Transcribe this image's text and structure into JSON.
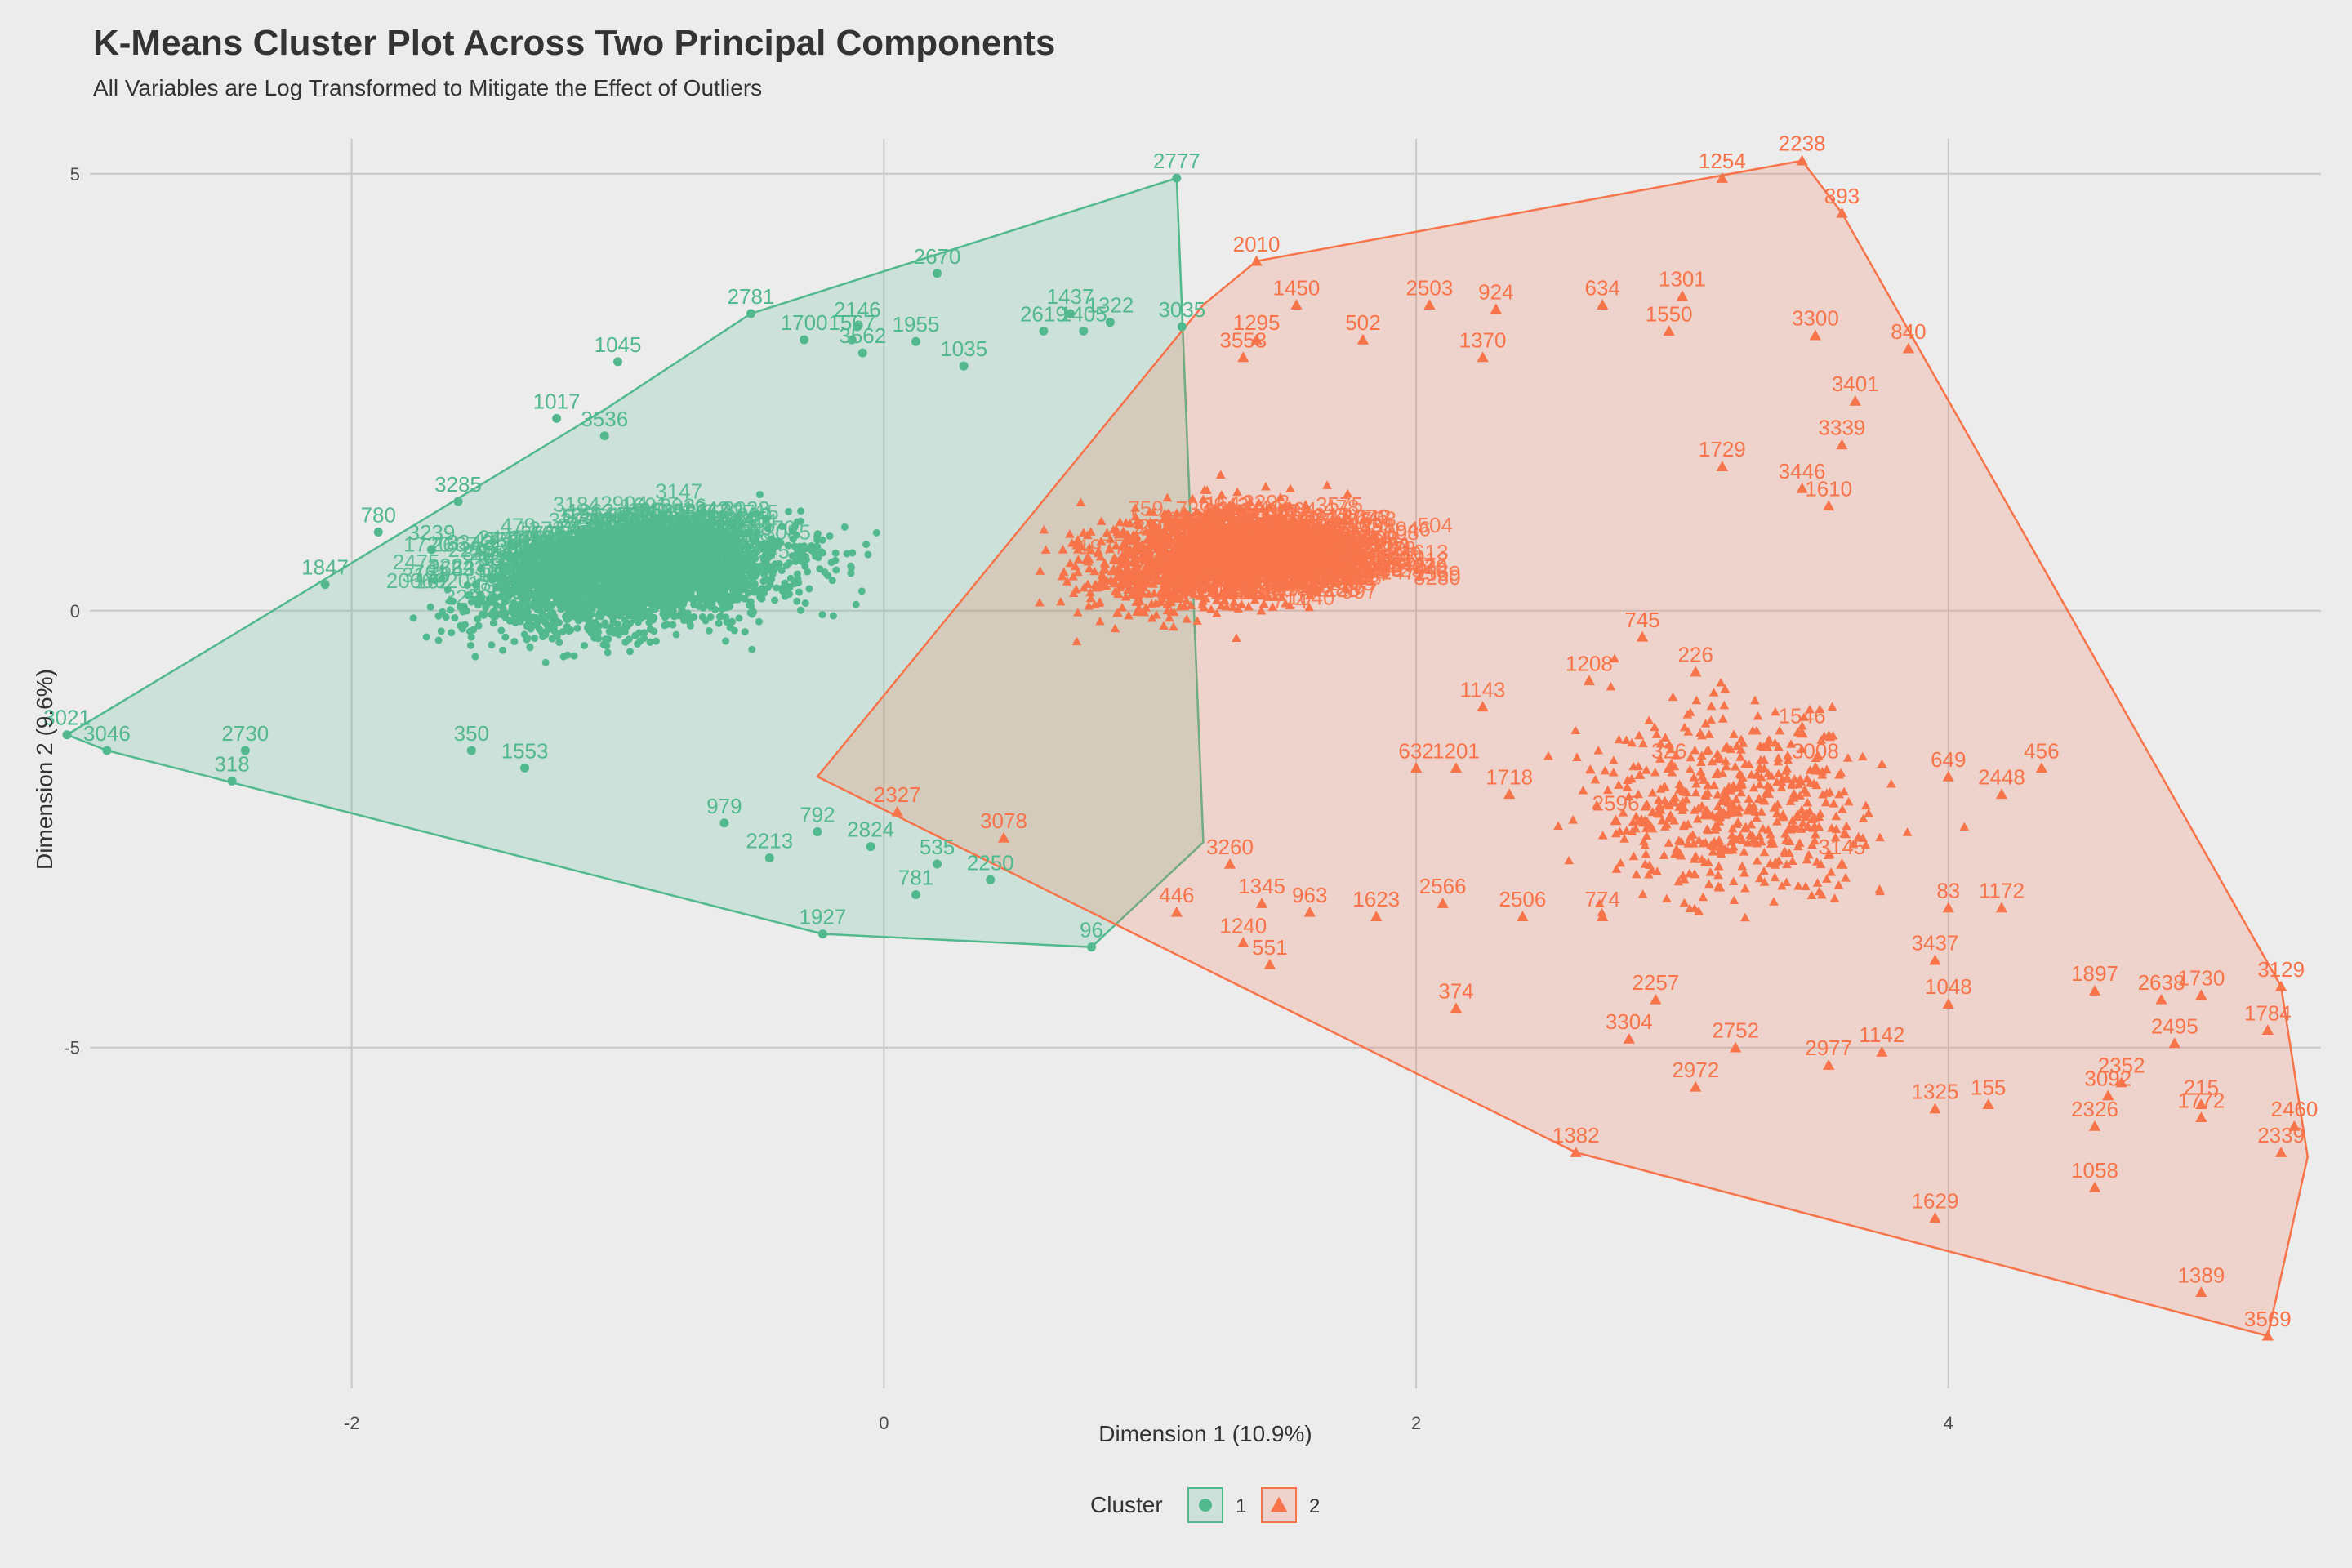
{
  "chart_data": {
    "type": "scatter",
    "title": "K-Means Cluster Plot Across Two Principal Components",
    "subtitle": "All Variables are Log Transformed to Mitigate the Effect of Outliers",
    "xlabel": "Dimension 1 (10.9%)",
    "ylabel": "Dimension 2 (9.6%)",
    "xlim": [
      -2.8,
      5.4
    ],
    "ylim": [
      -8.9,
      5.4
    ],
    "x_ticks": [
      -2,
      0,
      2,
      4
    ],
    "y_ticks": [
      -5,
      0,
      5
    ],
    "grid": true,
    "legend": {
      "title": "Cluster",
      "position": "bottom",
      "entries": [
        "1",
        "2"
      ]
    },
    "colors": {
      "cluster_1": "#52b98f",
      "cluster_2": "#f7744a",
      "background": "#ececec",
      "grid": "#c8c8c8",
      "text": "#333333"
    },
    "series": [
      {
        "name": "1",
        "marker": "circle",
        "hull": [
          [
            -3.07,
            -1.42
          ],
          [
            -2.92,
            -1.6
          ],
          [
            -0.23,
            -3.7
          ],
          [
            0.78,
            -3.85
          ],
          [
            1.2,
            -2.65
          ],
          [
            1.1,
            4.95
          ],
          [
            -0.5,
            3.4
          ],
          [
            -1.05,
            2.3
          ],
          [
            -2.35,
            -0.1
          ]
        ],
        "labeled_points": [
          {
            "label": "2777",
            "x": 1.1,
            "y": 4.95
          },
          {
            "label": "2670",
            "x": 0.2,
            "y": 3.86
          },
          {
            "label": "2781",
            "x": -0.5,
            "y": 3.4
          },
          {
            "label": "2146",
            "x": -0.1,
            "y": 3.25
          },
          {
            "label": "1700",
            "x": -0.3,
            "y": 3.1
          },
          {
            "label": "1567",
            "x": -0.12,
            "y": 3.1
          },
          {
            "label": "1955",
            "x": 0.12,
            "y": 3.08
          },
          {
            "label": "1035",
            "x": 0.3,
            "y": 2.8
          },
          {
            "label": "2619",
            "x": 0.6,
            "y": 3.2
          },
          {
            "label": "1437",
            "x": 0.7,
            "y": 3.4
          },
          {
            "label": "1322",
            "x": 0.85,
            "y": 3.3
          },
          {
            "label": "1405",
            "x": 0.75,
            "y": 3.2
          },
          {
            "label": "3035",
            "x": 1.12,
            "y": 3.25
          },
          {
            "label": "3562",
            "x": -0.08,
            "y": 2.95
          },
          {
            "label": "1045",
            "x": -1.0,
            "y": 2.85
          },
          {
            "label": "1017",
            "x": -1.23,
            "y": 2.2
          },
          {
            "label": "3536",
            "x": -1.05,
            "y": 2.0
          },
          {
            "label": "780",
            "x": -1.9,
            "y": 0.9
          },
          {
            "label": "3239",
            "x": -1.7,
            "y": 0.7
          },
          {
            "label": "3285",
            "x": -1.6,
            "y": 1.25
          },
          {
            "label": "1847",
            "x": -2.1,
            "y": 0.3
          },
          {
            "label": "3021",
            "x": -3.07,
            "y": -1.42
          },
          {
            "label": "3046",
            "x": -2.92,
            "y": -1.6
          },
          {
            "label": "2730",
            "x": -2.4,
            "y": -1.6
          },
          {
            "label": "318",
            "x": -2.45,
            "y": -1.95
          },
          {
            "label": "350",
            "x": -1.55,
            "y": -1.6
          },
          {
            "label": "1553",
            "x": -1.35,
            "y": -1.8
          },
          {
            "label": "979",
            "x": -0.6,
            "y": -2.43
          },
          {
            "label": "2213",
            "x": -0.43,
            "y": -2.83
          },
          {
            "label": "792",
            "x": -0.25,
            "y": -2.53
          },
          {
            "label": "2824",
            "x": -0.05,
            "y": -2.7
          },
          {
            "label": "535",
            "x": 0.2,
            "y": -2.9
          },
          {
            "label": "781",
            "x": 0.12,
            "y": -3.25
          },
          {
            "label": "2250",
            "x": 0.4,
            "y": -3.08
          },
          {
            "label": "1927",
            "x": -0.23,
            "y": -3.7
          },
          {
            "label": "96",
            "x": 0.78,
            "y": -3.85
          }
        ]
      },
      {
        "name": "2",
        "marker": "triangle",
        "hull": [
          [
            3.45,
            5.15
          ],
          [
            3.6,
            4.55
          ],
          [
            5.25,
            -4.3
          ],
          [
            5.35,
            -6.25
          ],
          [
            5.2,
            -8.3
          ],
          [
            2.6,
            -6.2
          ],
          [
            -0.25,
            -1.9
          ],
          [
            1.2,
            3.5
          ],
          [
            1.4,
            4.0
          ]
        ],
        "labeled_points": [
          {
            "label": "2238",
            "x": 3.45,
            "y": 5.15
          },
          {
            "label": "1254",
            "x": 3.15,
            "y": 4.95
          },
          {
            "label": "893",
            "x": 3.6,
            "y": 4.55
          },
          {
            "label": "2010",
            "x": 1.4,
            "y": 4.0
          },
          {
            "label": "2503",
            "x": 2.05,
            "y": 3.5
          },
          {
            "label": "924",
            "x": 2.3,
            "y": 3.45
          },
          {
            "label": "634",
            "x": 2.7,
            "y": 3.5
          },
          {
            "label": "1301",
            "x": 3.0,
            "y": 3.6
          },
          {
            "label": "1550",
            "x": 2.95,
            "y": 3.2
          },
          {
            "label": "840",
            "x": 3.85,
            "y": 3.0
          },
          {
            "label": "502",
            "x": 1.8,
            "y": 3.1
          },
          {
            "label": "1450",
            "x": 1.55,
            "y": 3.5
          },
          {
            "label": "1295",
            "x": 1.4,
            "y": 3.1
          },
          {
            "label": "3553",
            "x": 1.35,
            "y": 2.9
          },
          {
            "label": "1370",
            "x": 2.25,
            "y": 2.9
          },
          {
            "label": "3300",
            "x": 3.5,
            "y": 3.15
          },
          {
            "label": "3401",
            "x": 3.65,
            "y": 2.4
          },
          {
            "label": "3339",
            "x": 3.6,
            "y": 1.9
          },
          {
            "label": "3446",
            "x": 3.45,
            "y": 1.4
          },
          {
            "label": "1610",
            "x": 3.55,
            "y": 1.2
          },
          {
            "label": "1729",
            "x": 3.15,
            "y": 1.65
          },
          {
            "label": "745",
            "x": 2.85,
            "y": -0.3
          },
          {
            "label": "226",
            "x": 3.05,
            "y": -0.7
          },
          {
            "label": "1208",
            "x": 2.65,
            "y": -0.8
          },
          {
            "label": "1143",
            "x": 2.25,
            "y": -1.1
          },
          {
            "label": "1546",
            "x": 3.45,
            "y": -1.4
          },
          {
            "label": "326",
            "x": 2.95,
            "y": -1.8
          },
          {
            "label": "3008",
            "x": 3.5,
            "y": -1.8
          },
          {
            "label": "456",
            "x": 4.35,
            "y": -1.8
          },
          {
            "label": "649",
            "x": 4.0,
            "y": -1.9
          },
          {
            "label": "2448",
            "x": 4.2,
            "y": -2.1
          },
          {
            "label": "632",
            "x": 2.0,
            "y": -1.8
          },
          {
            "label": "1201",
            "x": 2.15,
            "y": -1.8
          },
          {
            "label": "1718",
            "x": 2.35,
            "y": -2.1
          },
          {
            "label": "2596",
            "x": 2.75,
            "y": -2.4
          },
          {
            "label": "3145",
            "x": 3.6,
            "y": -2.9
          },
          {
            "label": "83",
            "x": 4.0,
            "y": -3.4
          },
          {
            "label": "1172",
            "x": 4.2,
            "y": -3.4
          },
          {
            "label": "3437",
            "x": 3.95,
            "y": -4.0
          },
          {
            "label": "1048",
            "x": 4.0,
            "y": -4.5
          },
          {
            "label": "1897",
            "x": 4.55,
            "y": -4.35
          },
          {
            "label": "2638",
            "x": 4.8,
            "y": -4.45
          },
          {
            "label": "1730",
            "x": 4.95,
            "y": -4.4
          },
          {
            "label": "3129",
            "x": 5.25,
            "y": -4.3
          },
          {
            "label": "1784",
            "x": 5.2,
            "y": -4.8
          },
          {
            "label": "2495",
            "x": 4.85,
            "y": -4.95
          },
          {
            "label": "1142",
            "x": 3.75,
            "y": -5.05
          },
          {
            "label": "2977",
            "x": 3.55,
            "y": -5.2
          },
          {
            "label": "2752",
            "x": 3.2,
            "y": -5.0
          },
          {
            "label": "2972",
            "x": 3.05,
            "y": -5.45
          },
          {
            "label": "3304",
            "x": 2.8,
            "y": -4.9
          },
          {
            "label": "2257",
            "x": 2.9,
            "y": -4.45
          },
          {
            "label": "374",
            "x": 2.15,
            "y": -4.55
          },
          {
            "label": "2352",
            "x": 4.65,
            "y": -5.4
          },
          {
            "label": "3092",
            "x": 4.6,
            "y": -5.55
          },
          {
            "label": "215",
            "x": 4.95,
            "y": -5.65
          },
          {
            "label": "1772",
            "x": 4.95,
            "y": -5.8
          },
          {
            "label": "2460",
            "x": 5.3,
            "y": -5.9
          },
          {
            "label": "2326",
            "x": 4.55,
            "y": -5.9
          },
          {
            "label": "2339",
            "x": 5.25,
            "y": -6.2
          },
          {
            "label": "1325",
            "x": 3.95,
            "y": -5.7
          },
          {
            "label": "155",
            "x": 4.15,
            "y": -5.65
          },
          {
            "label": "1058",
            "x": 4.55,
            "y": -6.6
          },
          {
            "label": "1382",
            "x": 2.6,
            "y": -6.2
          },
          {
            "label": "1629",
            "x": 3.95,
            "y": -6.95
          },
          {
            "label": "1389",
            "x": 4.95,
            "y": -7.8
          },
          {
            "label": "3569",
            "x": 5.2,
            "y": -8.3
          },
          {
            "label": "551",
            "x": 1.45,
            "y": -4.05
          },
          {
            "label": "1240",
            "x": 1.35,
            "y": -3.8
          },
          {
            "label": "446",
            "x": 1.1,
            "y": -3.45
          },
          {
            "label": "963",
            "x": 1.6,
            "y": -3.45
          },
          {
            "label": "1623",
            "x": 1.85,
            "y": -3.5
          },
          {
            "label": "3260",
            "x": 1.3,
            "y": -2.9
          },
          {
            "label": "1345",
            "x": 1.42,
            "y": -3.35
          },
          {
            "label": "2506",
            "x": 2.4,
            "y": -3.5
          },
          {
            "label": "2566",
            "x": 2.1,
            "y": -3.35
          },
          {
            "label": "774",
            "x": 2.7,
            "y": -3.5
          },
          {
            "label": "2327",
            "x": 0.05,
            "y": -2.3
          },
          {
            "label": "3078",
            "x": 0.45,
            "y": -2.6
          }
        ]
      }
    ]
  }
}
